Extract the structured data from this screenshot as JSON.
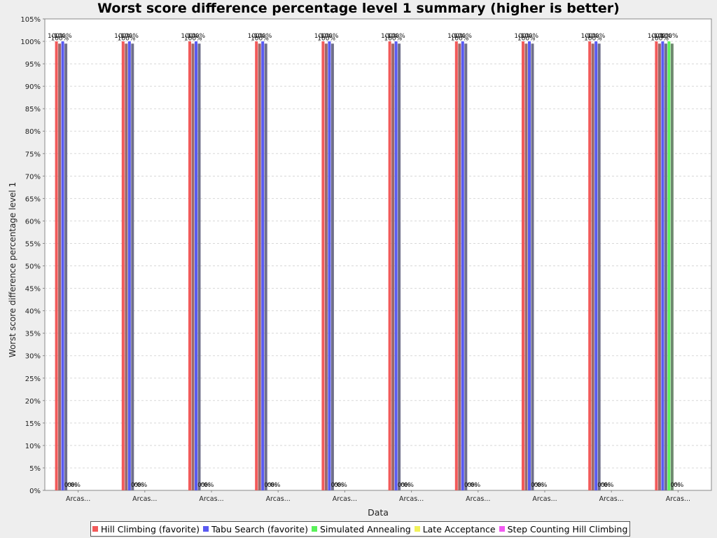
{
  "chart_data": {
    "type": "bar",
    "title": "Worst score difference percentage level 1 summary (higher is better)",
    "xlabel": "Data",
    "ylabel": "Worst score difference percentage level 1",
    "ylim": [
      0,
      105
    ],
    "yticks": [
      "0%",
      "5%",
      "10%",
      "15%",
      "20%",
      "25%",
      "30%",
      "35%",
      "40%",
      "45%",
      "50%",
      "55%",
      "60%",
      "65%",
      "70%",
      "75%",
      "80%",
      "85%",
      "90%",
      "95%",
      "100%",
      "105%"
    ],
    "categories": [
      "Arcas...",
      "Arcas...",
      "Arcas...",
      "Arcas...",
      "Arcas...",
      "Arcas...",
      "Arcas...",
      "Arcas...",
      "Arcas...",
      "Arcas..."
    ],
    "grid": true,
    "legend_position": "bottom",
    "series": [
      {
        "name": "Hill Climbing (favorite)",
        "color": "#f25a5a",
        "values": [
          100,
          100,
          100,
          100,
          100,
          100,
          100,
          100,
          100,
          100
        ]
      },
      {
        "name": "",
        "color": "#9b6a6a",
        "values": [
          99.5,
          99.5,
          99.5,
          99.5,
          99.5,
          99.5,
          99.5,
          99.5,
          99.5,
          99.5
        ]
      },
      {
        "name": "Tabu Search (favorite)",
        "color": "#5a5af2",
        "values": [
          100,
          100,
          100,
          100,
          100,
          100,
          100,
          100,
          100,
          100
        ]
      },
      {
        "name": "",
        "color": "#6f6f8a",
        "values": [
          99.5,
          99.5,
          99.5,
          99.5,
          99.5,
          99.5,
          99.5,
          99.5,
          99.5,
          99.5
        ]
      },
      {
        "name": "Simulated Annealing",
        "color": "#5af25a",
        "values": [
          0,
          0,
          0,
          0,
          0,
          0,
          0,
          0,
          0,
          100
        ]
      },
      {
        "name": "",
        "color": "#6f8a6f",
        "values": [
          0,
          0,
          0,
          0,
          0,
          0,
          0,
          0,
          0,
          99.5
        ]
      },
      {
        "name": "Late Acceptance",
        "color": "#f2f25a",
        "values": [
          0,
          0,
          0,
          0,
          0,
          0,
          0,
          0,
          0,
          0
        ]
      },
      {
        "name": "Step Counting Hill Climbing",
        "color": "#f25af2",
        "values": [
          0,
          0,
          0,
          0,
          0,
          0,
          0,
          0,
          0,
          0
        ]
      }
    ],
    "data_labels": [
      [
        "100%",
        "100%",
        "100%",
        "",
        "0%",
        "0%",
        "0%",
        ""
      ],
      [
        "100%",
        "100%",
        "100%",
        "",
        "0%",
        "0%",
        "0%",
        ""
      ],
      [
        "100%",
        "100%",
        "100%",
        "",
        "0%",
        "0%",
        "0%",
        ""
      ],
      [
        "100%",
        "100%",
        "100%",
        "",
        "0%",
        "0%",
        "0%",
        ""
      ],
      [
        "100%",
        "100%",
        "100%",
        "",
        "0%",
        "0%",
        "0%",
        ""
      ],
      [
        "100%",
        "100%",
        "100%",
        "",
        "0%",
        "0%",
        "0%",
        ""
      ],
      [
        "100%",
        "100%",
        "100%",
        "",
        "0%",
        "0%",
        "0%",
        ""
      ],
      [
        "100%",
        "100%",
        "100%",
        "",
        "0%",
        "0%",
        "0%",
        ""
      ],
      [
        "100%",
        "100%",
        "100%",
        "",
        "0%",
        "0%",
        "0%",
        ""
      ],
      [
        "100%",
        "100%",
        "100%",
        "",
        "100%",
        "",
        "0%",
        "0%"
      ]
    ],
    "legend": [
      {
        "label": "Hill Climbing (favorite)",
        "color": "#f25a5a"
      },
      {
        "label": "Tabu Search (favorite)",
        "color": "#5a5af2"
      },
      {
        "label": "Simulated Annealing",
        "color": "#5af25a"
      },
      {
        "label": "Late Acceptance",
        "color": "#f2f25a"
      },
      {
        "label": "Step Counting Hill Climbing",
        "color": "#f25af2"
      }
    ]
  }
}
